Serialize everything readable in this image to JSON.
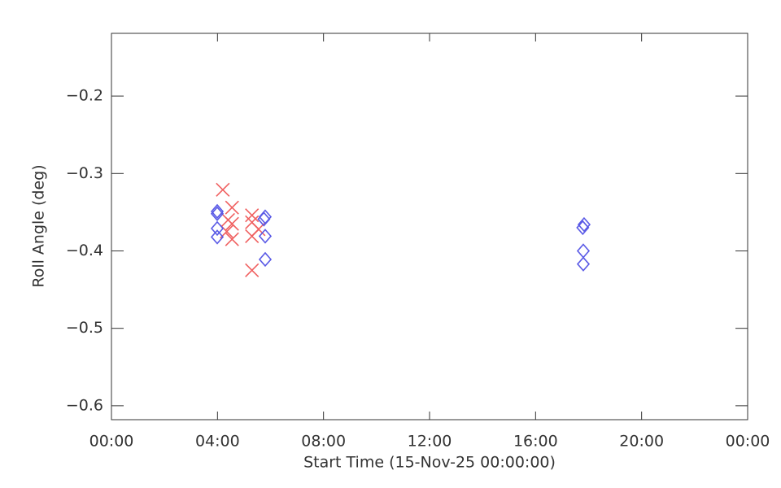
{
  "chart_data": {
    "type": "scatter",
    "x_label": "Start Time (15-Nov-25 00:00:00)",
    "y_label": "Roll Angle (deg)",
    "xlim": [
      0,
      24
    ],
    "xticks": [
      {
        "value": 0,
        "label": "00:00"
      },
      {
        "value": 4,
        "label": "04:00"
      },
      {
        "value": 8,
        "label": "08:00"
      },
      {
        "value": 12,
        "label": "12:00"
      },
      {
        "value": 16,
        "label": "16:00"
      },
      {
        "value": 20,
        "label": "20:00"
      },
      {
        "value": 24,
        "label": "00:00"
      }
    ],
    "ylim": [
      -0.618,
      -0.119
    ],
    "yticks": [
      {
        "value": -0.2,
        "label": "−0.2"
      },
      {
        "value": -0.3,
        "label": "−0.3"
      },
      {
        "value": -0.4,
        "label": "−0.4"
      },
      {
        "value": -0.5,
        "label": "−0.5"
      },
      {
        "value": -0.6,
        "label": "−0.6"
      }
    ],
    "series": [
      {
        "color": "#f06060",
        "marker": "x",
        "x": [
          4.2,
          4.55,
          4.4,
          4.55,
          4.35,
          4.55,
          5.3,
          5.3,
          5.55,
          5.3,
          5.3
        ],
        "values": [
          -0.321,
          -0.344,
          -0.36,
          -0.365,
          -0.375,
          -0.385,
          -0.354,
          -0.363,
          -0.372,
          -0.381,
          -0.425
        ]
      },
      {
        "color": "#5a5ae6",
        "marker": "diamond",
        "x": [
          3.99,
          3.99,
          3.99,
          3.99,
          5.8,
          5.75,
          5.8,
          5.8,
          17.83,
          17.78,
          17.8,
          17.8
        ],
        "values": [
          -0.349,
          -0.352,
          -0.371,
          -0.382,
          -0.356,
          -0.359,
          -0.381,
          -0.411,
          -0.366,
          -0.37,
          -0.4,
          -0.417
        ]
      }
    ]
  }
}
